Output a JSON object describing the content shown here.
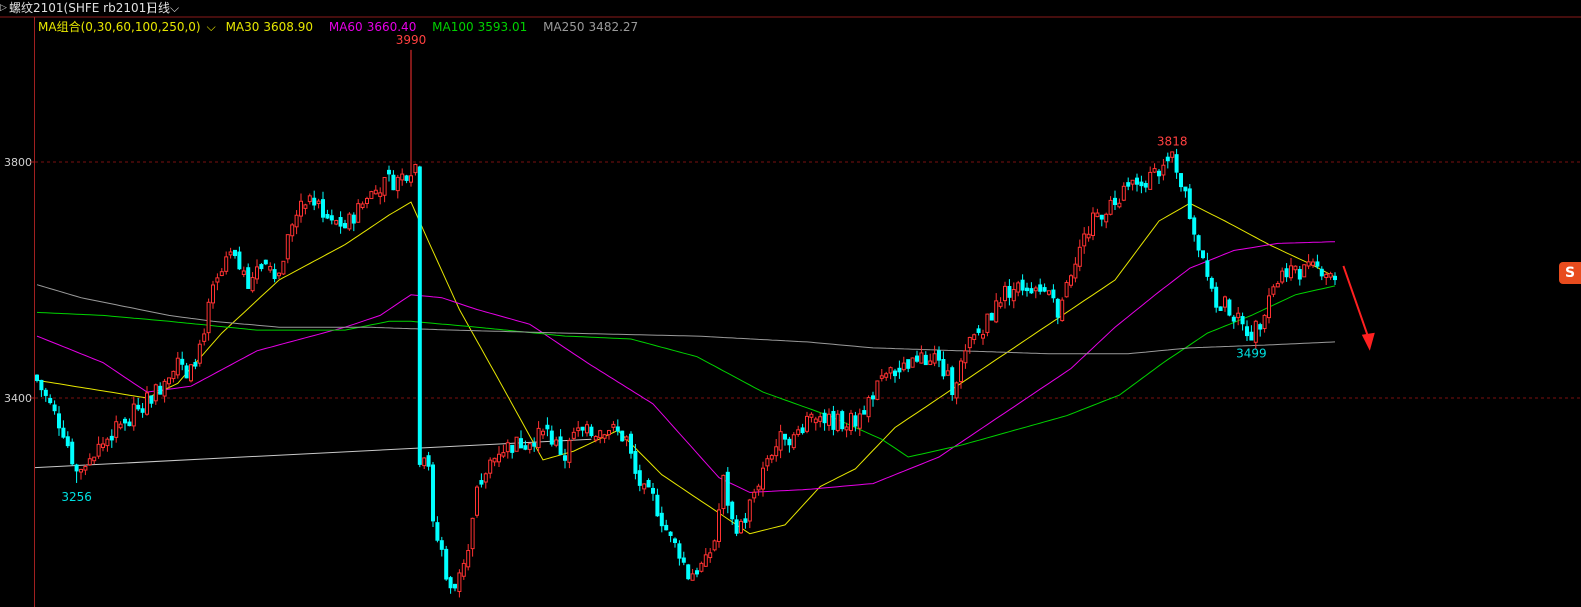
{
  "header": {
    "indicator_symbol": "▷",
    "contract_name": "螺纹2101(SHFE rb2101)",
    "period": "日线",
    "period_chevron": "⌵"
  },
  "legend": {
    "group_label": "MA组合(0,30,60,100,250,0)",
    "group_chevron": "⌵",
    "ma30": {
      "label": "MA30",
      "value": "3608.90",
      "color": "#e6e600"
    },
    "ma60": {
      "label": "MA60",
      "value": "3660.40",
      "color": "#e600e6"
    },
    "ma100": {
      "label": "MA100",
      "value": "3593.01",
      "color": "#00d200"
    },
    "ma250": {
      "label": "MA250",
      "value": "3482.27",
      "color": "#9a9a9a"
    }
  },
  "side_badge": {
    "text": "S",
    "icon": "brand-badge-icon",
    "color": "#e84c1e"
  },
  "chart_data": {
    "type": "candlestick",
    "symbol": "rb2101",
    "period": "daily",
    "y_axis": {
      "ticks": [
        3800,
        3400
      ],
      "ylim": [
        3060,
        4010
      ],
      "tick_labels": [
        "3800",
        "3400"
      ]
    },
    "grid": "dashed horizontal at tick levels",
    "colors": {
      "up": "#ff3232",
      "down": "#00ffff",
      "ma30": "#e6e600",
      "ma60": "#e600e6",
      "ma100": "#00d200",
      "ma250": "#9a9a9a",
      "trendline": "#c8c8c8",
      "arrow": "#ff2020"
    },
    "annotations": [
      {
        "label": "3990",
        "value": 3990,
        "type": "high",
        "color": "#ff4040",
        "index": 85
      },
      {
        "label": "3818",
        "value": 3818,
        "type": "high",
        "color": "#ff4040",
        "index": 258
      },
      {
        "label": "3256",
        "value": 3256,
        "type": "low",
        "color": "#00e0e0",
        "index": 9
      },
      {
        "label": "3499",
        "value": 3499,
        "type": "low",
        "color": "#00e0e0",
        "index": 276
      }
    ],
    "close_anchors": [
      [
        0,
        3430
      ],
      [
        6,
        3345
      ],
      [
        9,
        3275
      ],
      [
        12,
        3300
      ],
      [
        17,
        3340
      ],
      [
        22,
        3375
      ],
      [
        28,
        3420
      ],
      [
        32,
        3470
      ],
      [
        34,
        3430
      ],
      [
        36,
        3460
      ],
      [
        40,
        3580
      ],
      [
        44,
        3640
      ],
      [
        48,
        3600
      ],
      [
        52,
        3630
      ],
      [
        55,
        3610
      ],
      [
        58,
        3700
      ],
      [
        62,
        3740
      ],
      [
        66,
        3710
      ],
      [
        70,
        3690
      ],
      [
        74,
        3730
      ],
      [
        78,
        3760
      ],
      [
        82,
        3770
      ],
      [
        85,
        3790
      ],
      [
        86,
        3795
      ],
      [
        87,
        3300
      ],
      [
        88,
        3310
      ],
      [
        89,
        3290
      ],
      [
        90,
        3180
      ],
      [
        92,
        3140
      ],
      [
        94,
        3070
      ],
      [
        96,
        3110
      ],
      [
        98,
        3140
      ],
      [
        100,
        3240
      ],
      [
        104,
        3310
      ],
      [
        108,
        3320
      ],
      [
        112,
        3330
      ],
      [
        116,
        3340
      ],
      [
        120,
        3300
      ],
      [
        122,
        3340
      ],
      [
        126,
        3340
      ],
      [
        130,
        3350
      ],
      [
        134,
        3330
      ],
      [
        136,
        3270
      ],
      [
        138,
        3240
      ],
      [
        140,
        3230
      ],
      [
        144,
        3160
      ],
      [
        146,
        3140
      ],
      [
        148,
        3100
      ],
      [
        152,
        3120
      ],
      [
        154,
        3160
      ],
      [
        156,
        3260
      ],
      [
        158,
        3190
      ],
      [
        160,
        3180
      ],
      [
        162,
        3220
      ],
      [
        166,
        3300
      ],
      [
        170,
        3340
      ],
      [
        172,
        3330
      ],
      [
        176,
        3380
      ],
      [
        180,
        3360
      ],
      [
        184,
        3360
      ],
      [
        186,
        3360
      ],
      [
        190,
        3410
      ],
      [
        194,
        3440
      ],
      [
        198,
        3450
      ],
      [
        200,
        3460
      ],
      [
        204,
        3470
      ],
      [
        208,
        3420
      ],
      [
        212,
        3490
      ],
      [
        216,
        3530
      ],
      [
        220,
        3580
      ],
      [
        224,
        3590
      ],
      [
        228,
        3590
      ],
      [
        232,
        3550
      ],
      [
        236,
        3640
      ],
      [
        240,
        3700
      ],
      [
        244,
        3730
      ],
      [
        248,
        3760
      ],
      [
        252,
        3770
      ],
      [
        256,
        3790
      ],
      [
        258,
        3810
      ],
      [
        260,
        3770
      ],
      [
        262,
        3710
      ],
      [
        264,
        3660
      ],
      [
        266,
        3620
      ],
      [
        268,
        3560
      ],
      [
        270,
        3560
      ],
      [
        274,
        3520
      ],
      [
        276,
        3510
      ],
      [
        278,
        3530
      ],
      [
        280,
        3580
      ],
      [
        284,
        3620
      ],
      [
        288,
        3615
      ],
      [
        292,
        3620
      ],
      [
        295,
        3610
      ]
    ],
    "ma_series": {
      "MA30": [
        [
          0,
          3430
        ],
        [
          25,
          3400
        ],
        [
          32,
          3425
        ],
        [
          42,
          3510
        ],
        [
          55,
          3600
        ],
        [
          70,
          3660
        ],
        [
          80,
          3710
        ],
        [
          85,
          3732
        ],
        [
          89,
          3665
        ],
        [
          96,
          3550
        ],
        [
          105,
          3430
        ],
        [
          115,
          3295
        ],
        [
          122,
          3310
        ],
        [
          132,
          3345
        ],
        [
          142,
          3270
        ],
        [
          152,
          3220
        ],
        [
          162,
          3170
        ],
        [
          170,
          3185
        ],
        [
          178,
          3250
        ],
        [
          186,
          3280
        ],
        [
          195,
          3350
        ],
        [
          205,
          3400
        ],
        [
          215,
          3450
        ],
        [
          225,
          3500
        ],
        [
          235,
          3550
        ],
        [
          245,
          3600
        ],
        [
          255,
          3700
        ],
        [
          262,
          3730
        ],
        [
          270,
          3700
        ],
        [
          280,
          3660
        ],
        [
          290,
          3625
        ],
        [
          295,
          3605
        ]
      ],
      "MA60": [
        [
          0,
          3505
        ],
        [
          15,
          3460
        ],
        [
          25,
          3410
        ],
        [
          35,
          3420
        ],
        [
          50,
          3480
        ],
        [
          70,
          3520
        ],
        [
          78,
          3540
        ],
        [
          85,
          3575
        ],
        [
          92,
          3570
        ],
        [
          100,
          3550
        ],
        [
          112,
          3525
        ],
        [
          125,
          3460
        ],
        [
          140,
          3390
        ],
        [
          155,
          3265
        ],
        [
          162,
          3240
        ],
        [
          175,
          3245
        ],
        [
          190,
          3255
        ],
        [
          205,
          3300
        ],
        [
          215,
          3350
        ],
        [
          225,
          3400
        ],
        [
          235,
          3450
        ],
        [
          245,
          3520
        ],
        [
          255,
          3580
        ],
        [
          262,
          3620
        ],
        [
          272,
          3650
        ],
        [
          282,
          3662
        ],
        [
          295,
          3665
        ]
      ],
      "MA100": [
        [
          0,
          3545
        ],
        [
          15,
          3540
        ],
        [
          30,
          3530
        ],
        [
          50,
          3515
        ],
        [
          70,
          3515
        ],
        [
          80,
          3530
        ],
        [
          85,
          3530
        ],
        [
          100,
          3520
        ],
        [
          120,
          3505
        ],
        [
          135,
          3500
        ],
        [
          150,
          3470
        ],
        [
          165,
          3410
        ],
        [
          180,
          3370
        ],
        [
          192,
          3330
        ],
        [
          198,
          3300
        ],
        [
          210,
          3320
        ],
        [
          222,
          3345
        ],
        [
          234,
          3370
        ],
        [
          246,
          3405
        ],
        [
          256,
          3460
        ],
        [
          266,
          3510
        ],
        [
          276,
          3540
        ],
        [
          286,
          3575
        ],
        [
          295,
          3590
        ]
      ],
      "MA250": [
        [
          0,
          3592
        ],
        [
          10,
          3570
        ],
        [
          20,
          3555
        ],
        [
          30,
          3540
        ],
        [
          40,
          3530
        ],
        [
          55,
          3520
        ],
        [
          75,
          3520
        ],
        [
          95,
          3515
        ],
        [
          120,
          3510
        ],
        [
          150,
          3505
        ],
        [
          175,
          3495
        ],
        [
          190,
          3485
        ],
        [
          210,
          3480
        ],
        [
          230,
          3475
        ],
        [
          248,
          3475
        ],
        [
          262,
          3485
        ],
        [
          280,
          3490
        ],
        [
          295,
          3495
        ]
      ]
    },
    "trendline": [
      [
        0,
        3282
      ],
      [
        126,
        3330
      ]
    ],
    "forecast_arrow": {
      "from": [
        296,
        3617
      ],
      "to": [
        302,
        3480
      ],
      "direction": "down"
    }
  }
}
